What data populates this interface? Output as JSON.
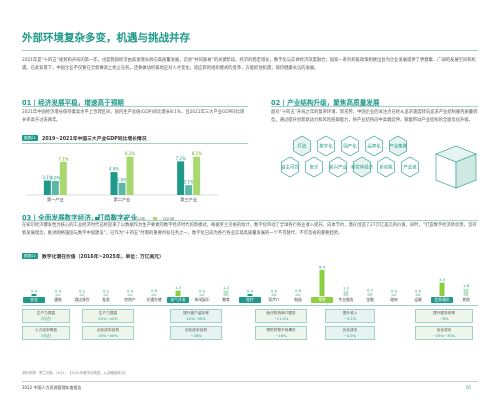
{
  "title": "外部环境复杂多变，机遇与挑战并存",
  "intro": "2021年是“十四五”规划和开局的第一年，也是我国经济由高速增长转向高质量发展，迈进“共同富裕”的关键阶段。经济的稳定增长，数字化与实体经济深度融合；国家一系列积极政策相继出台为企业发展提供了更健康、广阔的发展空间和机遇。在此背景下，中国企业不仅要在全新赛道上抢占先机，还要做动积极地应对人才变化，适应新的组织模式的变革，方能抓住机遇，保持健康长远的发展。",
  "section1": {
    "heading": "01 | 经济发展平稳，增速高于预期",
    "text": "2021年中国经济增长保持着高水平上合理区间，国内生产总值(GDP)同比增长8.1%，且2021年三大产业GDP同比增长率高于过去两年。"
  },
  "section2": {
    "heading": "02 | 产业结构升级，聚焦高质量发展",
    "text": "面对“十四五”开局之年的复杂环境、新形势，中国企业的关注点已经从追求速度转向追求产业结构服务质量转型。通过提升创新驱动力和风险抵御能力，将产业结构向中高端延伸，赋能带动产业结构的全面优化升级。"
  },
  "chart": {
    "tag": "图表01",
    "title": "2019~2021年中国三大产业GDP同比增长情况",
    "legend": [
      "2019年",
      "2020年",
      "2021年"
    ],
    "colors": [
      "#1f9a8a",
      "#5cb8a6",
      "#a9d86e"
    ]
  },
  "chart_data": {
    "type": "bar",
    "categories": [
      "第一产业",
      "第二产业",
      "第三产业"
    ],
    "series": [
      {
        "name": "2019年",
        "values": [
          3.1,
          4.9,
          7.2
        ]
      },
      {
        "name": "2020年",
        "values": [
          3.0,
          2.6,
          2.1
        ]
      },
      {
        "name": "2021年",
        "values": [
          7.1,
          8.2,
          8.2
        ]
      }
    ],
    "value_labels": [
      [
        "3.1%",
        "3.0%",
        "7.1%"
      ],
      [
        "4.9%",
        "2.6%",
        "8.2%"
      ],
      [
        "7.2%",
        "2.1%",
        "8.2%"
      ]
    ],
    "ylim": [
      0,
      9
    ]
  },
  "hexes": [
    "打造",
    "数字化",
    "国产化",
    "品牌化",
    "产业集群",
    "自主可控",
    "安全",
    "新兴产业",
    "新实体经济",
    "新动能",
    "产业链"
  ],
  "section3": {
    "heading": "03 | 全面发展数字经济，打造数字产业",
    "text": "在知识经济爆发性为核心的工业经济时代已经迎来了以数据作为生产要素的数字经济时代的新模式，根据罗兰贝格的估计，数字化带动了全球各行各业收入提升，成本节约，潜在创造了27万亿美元的价值，同时，“打造数字经济新优势，坚持新发展理念，推进网络强国与数字中国建设”，已作为“十四五”时期的重要目标任务之一，数字化已成为各行各业实现高质量发展的一个不可替代、不可忽视的重要趋势。"
  },
  "digital": {
    "tag": "图表02",
    "title": "数字化潜在价值（2016年~2025年，单位：万亿美元）",
    "values": [
      "0.4",
      "0.4",
      "0.2",
      "0.2",
      "0.4",
      "0.6",
      "1.3",
      "0.3",
      "1.4",
      "0.4",
      "0.5",
      "0.6",
      "6.4",
      "1.2",
      "0.7",
      "0.3",
      "0.5",
      "3.3",
      "1.8"
    ],
    "categories": [
      "农业",
      "建筑",
      "酒店餐饮",
      "批发",
      "房地产",
      "交通仓储",
      "油气开采",
      "休闲娱乐",
      "教育",
      "医疗",
      "医疗IT",
      "制造",
      "零售",
      "专业服务",
      "金融",
      "政府",
      "运输",
      "信息通讯",
      "其他"
    ]
  },
  "impact_rows": [
    {
      "label": "生产力提高",
      "sub": "（可达）",
      "value": "25%"
    },
    {
      "label": "人力成本降低",
      "sub": "（可达）",
      "value": "25%"
    }
  ],
  "impact_boxes": [
    [
      "生产力提高",
      "25%~42%"
    ],
    [
      "优化成本结构",
      "20%~40%"
    ],
    [
      "提升客户留存率",
      "15%~50%"
    ],
    [
      "优化成本结构",
      "~26%"
    ],
    [
      "医疗机构和IT服务",
      "~11.2%"
    ],
    [
      "预防药物不良事件",
      "~16%"
    ],
    [
      "提升收入",
      "~3.1%"
    ],
    [
      "优化成本",
      "~4.5%"
    ],
    [
      "提升服务效率",
      "~8%"
    ],
    [
      "优化成本",
      "~25%~35%"
    ]
  ],
  "source": "资料来源：罗兰贝格，2021，【2021年数字化转型，从战略到执行】",
  "footer_left": "2022 中国人力资源管理年度报告",
  "footer_right": "05"
}
